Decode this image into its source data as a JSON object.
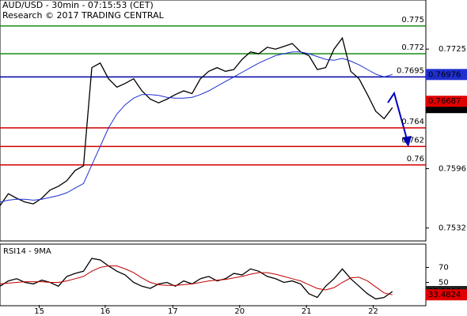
{
  "header": {
    "title": "AUD/USD - 30min - 07:15:53 (CET)",
    "subtitle": "Research © 2017 TRADING CENTRAL"
  },
  "chart_data": [
    {
      "type": "line",
      "x": [
        0,
        1,
        2,
        3,
        4,
        5,
        6,
        7,
        8,
        9,
        10,
        11,
        12,
        13,
        14,
        15,
        16,
        17,
        18,
        19,
        20,
        21,
        22,
        23,
        24,
        25,
        26,
        27,
        28,
        29,
        30,
        31,
        32,
        33,
        34,
        35,
        36,
        37,
        38,
        39,
        40,
        41,
        42,
        43,
        44,
        45,
        46,
        47
      ],
      "xlim": [
        0,
        51
      ],
      "ylim": [
        0.7518,
        0.7778
      ],
      "yticks": [
        0.7725,
        0.7596,
        0.7532
      ],
      "series": [
        {
          "color": "#000000",
          "values": [
            0.7556,
            0.7569,
            0.7564,
            0.756,
            0.7558,
            0.7564,
            0.7573,
            0.7577,
            0.7583,
            0.7594,
            0.7599,
            0.7705,
            0.771,
            0.7693,
            0.7684,
            0.7688,
            0.7693,
            0.768,
            0.7671,
            0.7667,
            0.7671,
            0.7676,
            0.768,
            0.7677,
            0.7693,
            0.7701,
            0.7705,
            0.7701,
            0.7703,
            0.7714,
            0.7722,
            0.772,
            0.7727,
            0.7725,
            0.7728,
            0.7731,
            0.7722,
            0.7718,
            0.7703,
            0.7705,
            0.7725,
            0.7737,
            0.7701,
            0.7693,
            0.7676,
            0.7658,
            0.765,
            0.76619
          ]
        },
        {
          "color": "#1f2fd0",
          "values": [
            0.756,
            0.7562,
            0.7563,
            0.7563,
            0.7562,
            0.7563,
            0.7565,
            0.7567,
            0.757,
            0.7575,
            0.758,
            0.76,
            0.762,
            0.764,
            0.7655,
            0.7665,
            0.7672,
            0.7676,
            0.7676,
            0.7675,
            0.7673,
            0.7672,
            0.7672,
            0.7673,
            0.7676,
            0.768,
            0.7685,
            0.769,
            0.7695,
            0.77,
            0.7705,
            0.771,
            0.7714,
            0.7718,
            0.772,
            0.7722,
            0.7722,
            0.772,
            0.7717,
            0.7714,
            0.7713,
            0.7715,
            0.7712,
            0.7708,
            0.7703,
            0.7698,
            0.7695,
            0.76976
          ]
        }
      ],
      "levels": [
        {
          "value": 0.775,
          "color": "#1a8c1a"
        },
        {
          "value": 0.772,
          "color": "#1a8c1a"
        },
        {
          "value": 0.7695,
          "color": "#0000a8"
        },
        {
          "value": 0.764,
          "color": "#d00000"
        },
        {
          "value": 0.762,
          "color": "#d00000"
        },
        {
          "value": 0.76,
          "color": "#d00000"
        }
      ],
      "markers": [
        {
          "value": 0.76687,
          "color": "#e00000"
        }
      ]
    },
    {
      "type": "line",
      "title": "RSI14 - 9MA",
      "x": [
        0,
        1,
        2,
        3,
        4,
        5,
        6,
        7,
        8,
        9,
        10,
        11,
        12,
        13,
        14,
        15,
        16,
        17,
        18,
        19,
        20,
        21,
        22,
        23,
        24,
        25,
        26,
        27,
        28,
        29,
        30,
        31,
        32,
        33,
        34,
        35,
        36,
        37,
        38,
        39,
        40,
        41,
        42,
        43,
        44,
        45,
        46,
        47
      ],
      "xlim": [
        0,
        51
      ],
      "xticks": [
        {
          "value": 4.7,
          "label": "15"
        },
        {
          "value": 12.6,
          "label": "16"
        },
        {
          "value": 20.7,
          "label": "17"
        },
        {
          "value": 28.7,
          "label": "20"
        },
        {
          "value": 36.7,
          "label": "21"
        },
        {
          "value": 44.7,
          "label": "22"
        }
      ],
      "ylim": [
        20,
        100
      ],
      "yticks": [
        70,
        50
      ],
      "series": [
        {
          "color": "#000000",
          "box": "#222222",
          "values": [
            45,
            52,
            55,
            50,
            48,
            53,
            50,
            45,
            58,
            62,
            65,
            82,
            80,
            72,
            65,
            60,
            50,
            45,
            42,
            48,
            50,
            45,
            52,
            48,
            55,
            58,
            52,
            55,
            62,
            60,
            68,
            65,
            58,
            55,
            50,
            52,
            48,
            35,
            30,
            45,
            55,
            68,
            55,
            45,
            35,
            28,
            30,
            37.8808
          ]
        },
        {
          "color": "#c00000",
          "box": "#e00000",
          "values": [
            48,
            49,
            50,
            51,
            51,
            51,
            50,
            50,
            52,
            55,
            58,
            65,
            70,
            72,
            72,
            68,
            63,
            56,
            50,
            47,
            46,
            46,
            47,
            48,
            50,
            52,
            53,
            54,
            56,
            58,
            61,
            63,
            63,
            61,
            58,
            55,
            52,
            47,
            42,
            40,
            43,
            50,
            56,
            57,
            52,
            44,
            36,
            33.4824
          ]
        }
      ]
    }
  ]
}
